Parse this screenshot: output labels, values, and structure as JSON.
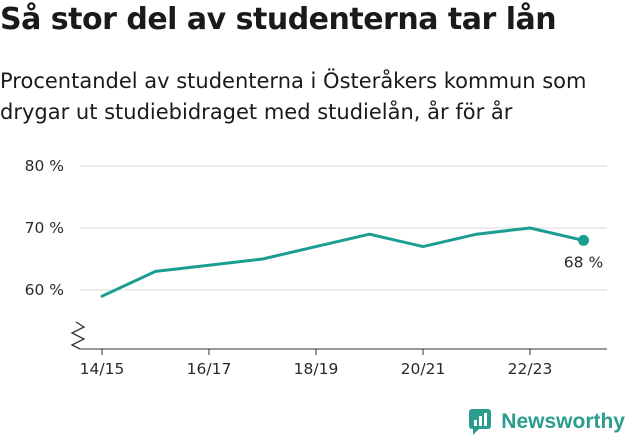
{
  "title": "Så stor del av studenterna tar lån",
  "subtitle": "Procentandel av studenterna i Österåkers kommun som drygar ut studiebidraget med studielån, år för år",
  "brand": {
    "name": "Newsworthy",
    "logo_icon": "newsworthy-logo-icon"
  },
  "colors": {
    "line": "#1a9e91",
    "grid": "#d9d9d9",
    "axis": "#333333",
    "brand": "#2a9d8f"
  },
  "chart_data": {
    "type": "line",
    "title": "Så stor del av studenterna tar lån",
    "x_tick_labels": [
      "14/15",
      "16/17",
      "18/19",
      "20/21",
      "22/23"
    ],
    "y_tick_labels": [
      "60 %",
      "70 %",
      "80 %"
    ],
    "y_ticks": [
      60,
      70,
      80
    ],
    "ylim": [
      50,
      80
    ],
    "axis_break": true,
    "grid": true,
    "series": [
      {
        "x": [
          "14/15",
          "15/16",
          "16/17",
          "17/18",
          "18/19",
          "19/20",
          "20/21",
          "21/22",
          "22/23",
          "23/24"
        ],
        "values": [
          59,
          63,
          64,
          65,
          67,
          69,
          67,
          69,
          70,
          68
        ]
      }
    ],
    "end_label": "68 %"
  }
}
